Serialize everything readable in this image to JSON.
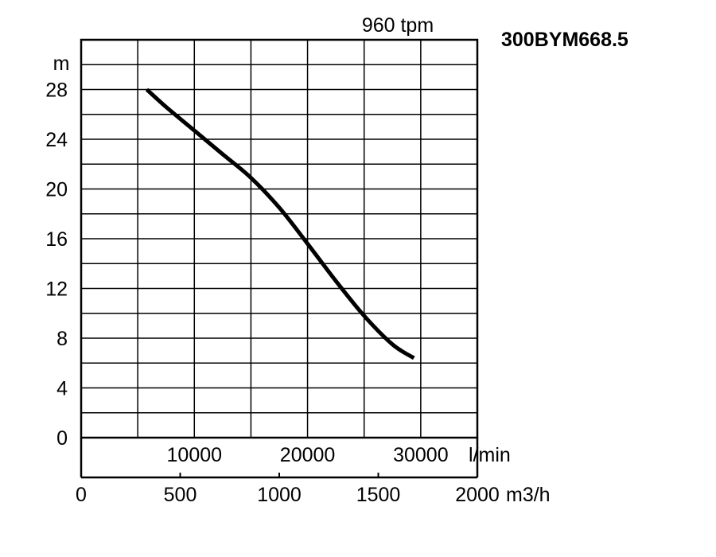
{
  "chart_data": {
    "type": "line",
    "model": "300BYM668.5",
    "speed": "960 tpm",
    "ylabel": "m",
    "ylim": [
      0,
      28
    ],
    "yticks": [
      "0",
      "4",
      "8",
      "12",
      "16",
      "20",
      "24",
      "28"
    ],
    "xlim_lmin": [
      0,
      35000
    ],
    "flow_ticks_lmin": [
      "10000",
      "20000",
      "30000"
    ],
    "flow_unit_lmin": "l/min",
    "xlim_m3h": [
      0,
      2000
    ],
    "flow_ticks_m3h": [
      "0",
      "500",
      "1000",
      "1500",
      "2000"
    ],
    "flow_unit_m3h": "m3/h",
    "grid": true,
    "series": [
      {
        "x": [
          5800,
          7500,
          10000,
          12500,
          15000,
          17500,
          20000,
          22500,
          25000,
          27500,
          29400
        ],
        "y": [
          28.0,
          26.6,
          24.7,
          22.8,
          20.9,
          18.5,
          15.6,
          12.6,
          9.8,
          7.5,
          6.4
        ]
      }
    ]
  }
}
